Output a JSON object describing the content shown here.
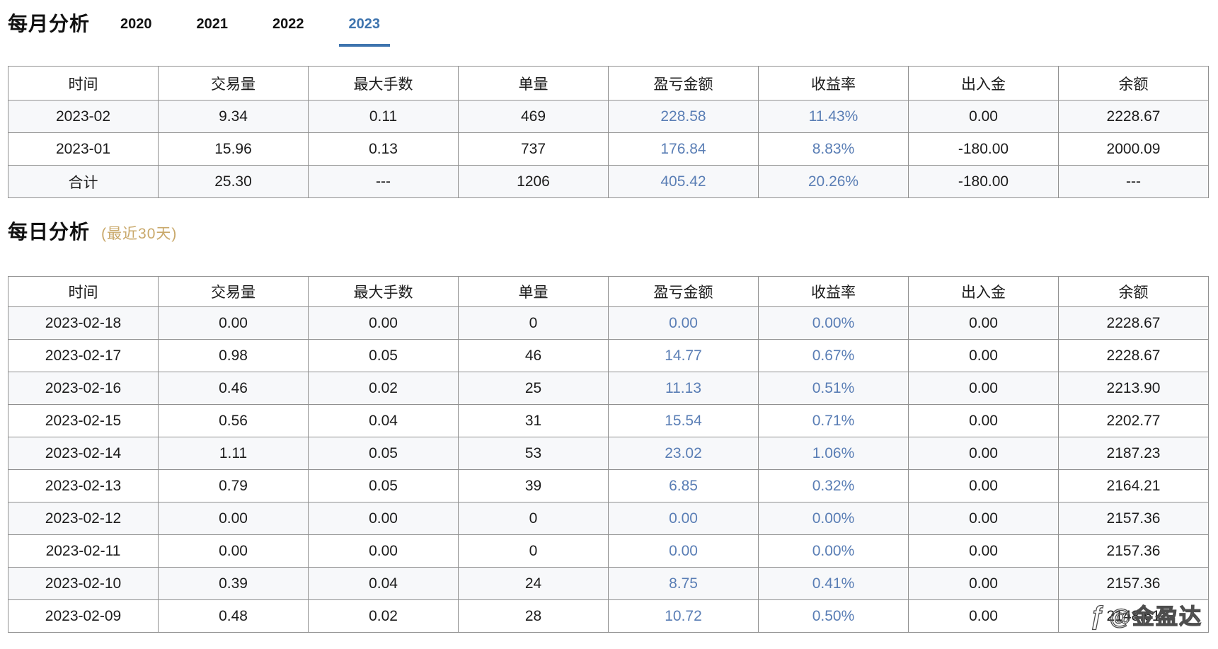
{
  "monthly": {
    "title": "每月分析",
    "tabs": [
      {
        "label": "2020",
        "active": false
      },
      {
        "label": "2021",
        "active": false
      },
      {
        "label": "2022",
        "active": false
      },
      {
        "label": "2023",
        "active": true
      }
    ],
    "columns": [
      "时间",
      "交易量",
      "最大手数",
      "单量",
      "盈亏金额",
      "收益率",
      "出入金",
      "余额"
    ],
    "rows": [
      [
        "2023-02",
        "9.34",
        "0.11",
        "469",
        "228.58",
        "11.43%",
        "0.00",
        "2228.67"
      ],
      [
        "2023-01",
        "15.96",
        "0.13",
        "737",
        "176.84",
        "8.83%",
        "-180.00",
        "2000.09"
      ],
      [
        "合计",
        "25.30",
        "---",
        "1206",
        "405.42",
        "20.26%",
        "-180.00",
        "---"
      ]
    ]
  },
  "daily": {
    "title": "每日分析",
    "subtitle": "(最近30天)",
    "columns": [
      "时间",
      "交易量",
      "最大手数",
      "单量",
      "盈亏金额",
      "收益率",
      "出入金",
      "余额"
    ],
    "rows": [
      [
        "2023-02-18",
        "0.00",
        "0.00",
        "0",
        "0.00",
        "0.00%",
        "0.00",
        "2228.67"
      ],
      [
        "2023-02-17",
        "0.98",
        "0.05",
        "46",
        "14.77",
        "0.67%",
        "0.00",
        "2228.67"
      ],
      [
        "2023-02-16",
        "0.46",
        "0.02",
        "25",
        "11.13",
        "0.51%",
        "0.00",
        "2213.90"
      ],
      [
        "2023-02-15",
        "0.56",
        "0.04",
        "31",
        "15.54",
        "0.71%",
        "0.00",
        "2202.77"
      ],
      [
        "2023-02-14",
        "1.11",
        "0.05",
        "53",
        "23.02",
        "1.06%",
        "0.00",
        "2187.23"
      ],
      [
        "2023-02-13",
        "0.79",
        "0.05",
        "39",
        "6.85",
        "0.32%",
        "0.00",
        "2164.21"
      ],
      [
        "2023-02-12",
        "0.00",
        "0.00",
        "0",
        "0.00",
        "0.00%",
        "0.00",
        "2157.36"
      ],
      [
        "2023-02-11",
        "0.00",
        "0.00",
        "0",
        "0.00",
        "0.00%",
        "0.00",
        "2157.36"
      ],
      [
        "2023-02-10",
        "0.39",
        "0.04",
        "24",
        "8.75",
        "0.41%",
        "0.00",
        "2157.36"
      ],
      [
        "2023-02-09",
        "0.48",
        "0.02",
        "28",
        "10.72",
        "0.50%",
        "0.00",
        "2148.61"
      ]
    ]
  },
  "watermark": {
    "logo": "ƒ",
    "text": "@金盈达"
  },
  "colors": {
    "value_blue": "#5a7eb5",
    "tab_active_blue": "#3e74ae",
    "subtitle_tan": "#c9a86a",
    "row_stripe": "#f7f8fa",
    "grid_border": "#909090"
  }
}
